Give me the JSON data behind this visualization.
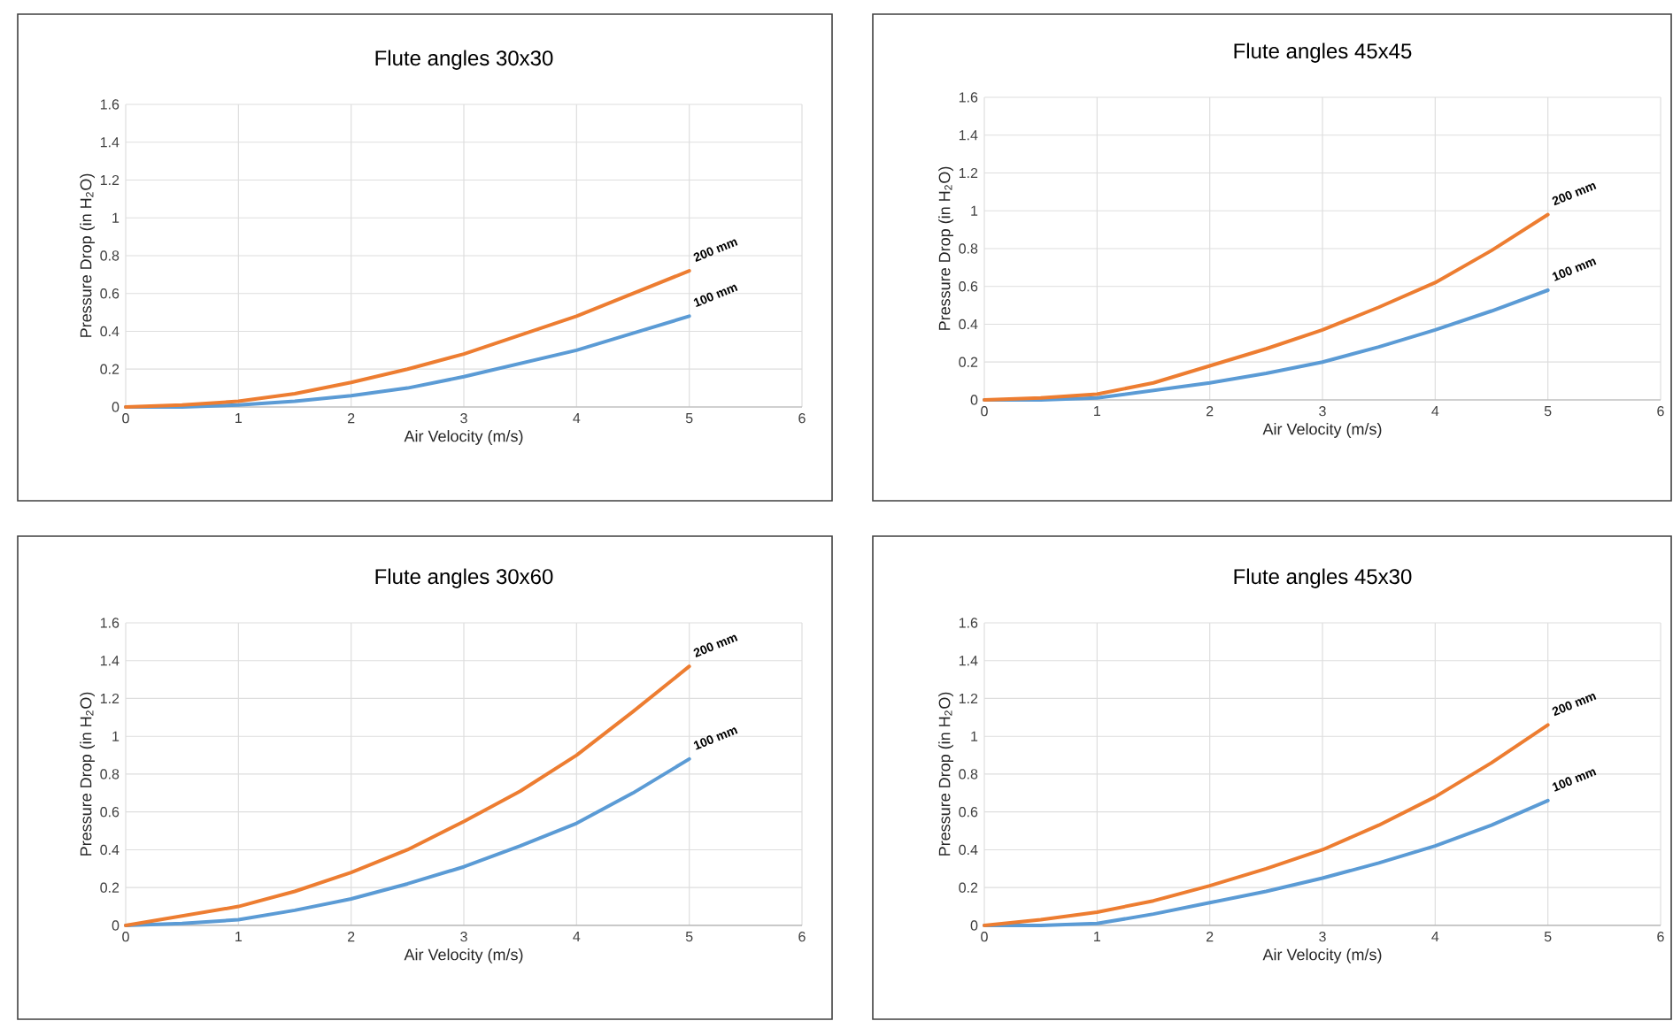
{
  "chart_data": [
    {
      "type": "line",
      "title": "Flute angles 30x30",
      "xlabel": "Air Velocity (m/s)",
      "ylabel": "Pressure Drop (in H$_{2}$O)",
      "x": [
        0,
        0.5,
        1,
        1.5,
        2,
        2.5,
        3,
        3.5,
        4,
        4.5,
        5
      ],
      "xlim": [
        0,
        6
      ],
      "ylim": [
        0,
        1.6
      ],
      "xticks": [
        0,
        1,
        2,
        3,
        4,
        5,
        6
      ],
      "yticks": [
        0,
        0.2,
        0.4,
        0.6,
        0.8,
        1,
        1.2,
        1.4,
        1.6
      ],
      "grid": true,
      "series": [
        {
          "name": "100 mm",
          "color": "#5b9bd5",
          "values": [
            0,
            0,
            0.01,
            0.03,
            0.06,
            0.1,
            0.16,
            0.23,
            0.3,
            0.39,
            0.48
          ]
        },
        {
          "name": "200 mm",
          "color": "#ed7d31",
          "values": [
            0,
            0.01,
            0.03,
            0.07,
            0.13,
            0.2,
            0.28,
            0.38,
            0.48,
            0.6,
            0.72
          ]
        }
      ]
    },
    {
      "type": "line",
      "title": "Flute angles 45x45",
      "xlabel": "Air Velocity (m/s)",
      "ylabel": "Pressure Drop (in H$_{2}$O)",
      "x": [
        0,
        0.5,
        1,
        1.5,
        2,
        2.5,
        3,
        3.5,
        4,
        4.5,
        5
      ],
      "xlim": [
        0,
        6
      ],
      "ylim": [
        0,
        1.6
      ],
      "xticks": [
        0,
        1,
        2,
        3,
        4,
        5,
        6
      ],
      "yticks": [
        0,
        0.2,
        0.4,
        0.6,
        0.8,
        1,
        1.2,
        1.4,
        1.6
      ],
      "grid": true,
      "series": [
        {
          "name": "100 mm",
          "color": "#5b9bd5",
          "values": [
            0,
            0,
            0.01,
            0.05,
            0.09,
            0.14,
            0.2,
            0.28,
            0.37,
            0.47,
            0.58
          ]
        },
        {
          "name": "200 mm",
          "color": "#ed7d31",
          "values": [
            0,
            0.01,
            0.03,
            0.09,
            0.18,
            0.27,
            0.37,
            0.49,
            0.62,
            0.79,
            0.98
          ]
        }
      ]
    },
    {
      "type": "line",
      "title": "Flute angles 30x60",
      "xlabel": "Air Velocity (m/s)",
      "ylabel": "Pressure Drop (in H$_{2}$O)",
      "x": [
        0,
        0.5,
        1,
        1.5,
        2,
        2.5,
        3,
        3.5,
        4,
        4.5,
        5
      ],
      "xlim": [
        0,
        6
      ],
      "ylim": [
        0,
        1.6
      ],
      "xticks": [
        0,
        1,
        2,
        3,
        4,
        5,
        6
      ],
      "yticks": [
        0,
        0.2,
        0.4,
        0.6,
        0.8,
        1,
        1.2,
        1.4,
        1.6
      ],
      "grid": true,
      "series": [
        {
          "name": "100 mm",
          "color": "#5b9bd5",
          "values": [
            0,
            0.01,
            0.03,
            0.08,
            0.14,
            0.22,
            0.31,
            0.42,
            0.54,
            0.7,
            0.88
          ]
        },
        {
          "name": "200 mm",
          "color": "#ed7d31",
          "values": [
            0,
            0.05,
            0.1,
            0.18,
            0.28,
            0.4,
            0.55,
            0.71,
            0.9,
            1.13,
            1.37
          ]
        }
      ]
    },
    {
      "type": "line",
      "title": "Flute angles 45x30",
      "xlabel": "Air Velocity (m/s)",
      "ylabel": "Pressure Drop (in H$_{2}$O)",
      "x": [
        0,
        0.5,
        1,
        1.5,
        2,
        2.5,
        3,
        3.5,
        4,
        4.5,
        5
      ],
      "xlim": [
        0,
        6
      ],
      "ylim": [
        0,
        1.6
      ],
      "xticks": [
        0,
        1,
        2,
        3,
        4,
        5,
        6
      ],
      "yticks": [
        0,
        0.2,
        0.4,
        0.6,
        0.8,
        1,
        1.2,
        1.4,
        1.6
      ],
      "grid": true,
      "series": [
        {
          "name": "100 mm",
          "color": "#5b9bd5",
          "values": [
            0,
            0,
            0.01,
            0.06,
            0.12,
            0.18,
            0.25,
            0.33,
            0.42,
            0.53,
            0.66
          ]
        },
        {
          "name": "200 mm",
          "color": "#ed7d31",
          "values": [
            0,
            0.03,
            0.07,
            0.13,
            0.21,
            0.3,
            0.4,
            0.53,
            0.68,
            0.86,
            1.06
          ]
        }
      ]
    }
  ]
}
